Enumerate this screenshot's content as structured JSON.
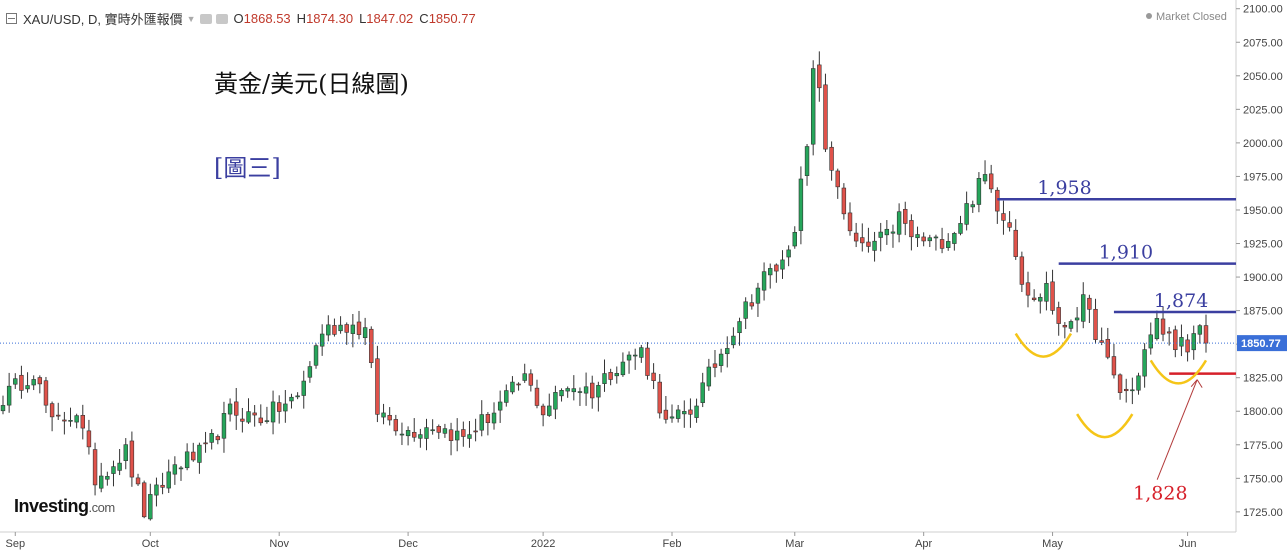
{
  "header": {
    "symbol": "XAU/USD, D, 實時外匯報價",
    "open_label": "O",
    "open": "1868.53",
    "high_label": "H",
    "high": "1874.30",
    "low_label": "L",
    "low": "1847.02",
    "close_label": "C",
    "close": "1850.77"
  },
  "market_status": "Market Closed",
  "annotations": {
    "title": "黃金/美元(日線圖)",
    "figure_label": "[圖三]"
  },
  "logo": {
    "brand": "Investing",
    "domain": ".com"
  },
  "colors": {
    "up": "#26a65b",
    "down": "#e0524a",
    "resistance": "#3b3fa0",
    "support": "#d6202a",
    "pattern": "#f5c518",
    "price_tag": "#3a6fd8"
  },
  "chart_data": {
    "type": "candlestick",
    "ylim": [
      1710,
      2105
    ],
    "yticks": [
      1725,
      1750,
      1775,
      1800,
      1825,
      1850,
      1875,
      1900,
      1925,
      1950,
      1975,
      2000,
      2025,
      2050,
      2075,
      2100
    ],
    "ytick_labels": [
      "1725.00",
      "1750.00",
      "1775.00",
      "1800.00",
      "1825.00",
      "1850.00",
      "1875.00",
      "1900.00",
      "1925.00",
      "1950.00",
      "1975.00",
      "2000.00",
      "2025.00",
      "2050.00",
      "2075.00",
      "2100.00"
    ],
    "xtick_labels": [
      "Sep",
      "Oct",
      "Nov",
      "Dec",
      "2022",
      "Feb",
      "Mar",
      "Apr",
      "May",
      "Jun"
    ],
    "xtick_index": [
      2,
      24,
      45,
      66,
      88,
      109,
      129,
      150,
      171,
      193
    ],
    "current_price": 1850.77,
    "current_price_label": "1850.77",
    "levels": [
      {
        "value": 1958,
        "label": "1,958",
        "from_index": 162,
        "kind": "resistance"
      },
      {
        "value": 1910,
        "label": "1,910",
        "from_index": 172,
        "kind": "resistance"
      },
      {
        "value": 1874,
        "label": "1,874",
        "from_index": 181,
        "kind": "resistance"
      },
      {
        "value": 1828,
        "label": "1,828",
        "from_index": 190,
        "kind": "support"
      }
    ],
    "patterns": [
      {
        "type": "bottom-arc",
        "from_index": 165,
        "to_index": 174,
        "low": 1840
      },
      {
        "type": "bottom-arc",
        "from_index": 175,
        "to_index": 184,
        "low": 1780
      },
      {
        "type": "bottom-arc",
        "from_index": 187,
        "to_index": 196,
        "low": 1820
      }
    ],
    "anchors": [
      {
        "i": 0,
        "p": 1810
      },
      {
        "i": 5,
        "p": 1830
      },
      {
        "i": 8,
        "p": 1790
      },
      {
        "i": 12,
        "p": 1800
      },
      {
        "i": 15,
        "p": 1750
      },
      {
        "i": 20,
        "p": 1770
      },
      {
        "i": 23,
        "p": 1725
      },
      {
        "i": 28,
        "p": 1760
      },
      {
        "i": 33,
        "p": 1770
      },
      {
        "i": 37,
        "p": 1800
      },
      {
        "i": 42,
        "p": 1795
      },
      {
        "i": 48,
        "p": 1810
      },
      {
        "i": 52,
        "p": 1860
      },
      {
        "i": 56,
        "p": 1865
      },
      {
        "i": 59,
        "p": 1860
      },
      {
        "i": 61,
        "p": 1800
      },
      {
        "i": 66,
        "p": 1785
      },
      {
        "i": 70,
        "p": 1790
      },
      {
        "i": 75,
        "p": 1780
      },
      {
        "i": 80,
        "p": 1800
      },
      {
        "i": 85,
        "p": 1825
      },
      {
        "i": 88,
        "p": 1800
      },
      {
        "i": 92,
        "p": 1820
      },
      {
        "i": 96,
        "p": 1815
      },
      {
        "i": 100,
        "p": 1835
      },
      {
        "i": 104,
        "p": 1845
      },
      {
        "i": 106,
        "p": 1820
      },
      {
        "i": 108,
        "p": 1790
      },
      {
        "i": 112,
        "p": 1800
      },
      {
        "i": 116,
        "p": 1835
      },
      {
        "i": 120,
        "p": 1870
      },
      {
        "i": 124,
        "p": 1900
      },
      {
        "i": 127,
        "p": 1910
      },
      {
        "i": 129,
        "p": 1940
      },
      {
        "i": 131,
        "p": 1995
      },
      {
        "i": 132,
        "p": 2050
      },
      {
        "i": 133,
        "p": 2045
      },
      {
        "i": 134,
        "p": 1990
      },
      {
        "i": 136,
        "p": 1970
      },
      {
        "i": 138,
        "p": 1930
      },
      {
        "i": 140,
        "p": 1920
      },
      {
        "i": 144,
        "p": 1930
      },
      {
        "i": 146,
        "p": 1945
      },
      {
        "i": 148,
        "p": 1930
      },
      {
        "i": 152,
        "p": 1925
      },
      {
        "i": 155,
        "p": 1935
      },
      {
        "i": 158,
        "p": 1960
      },
      {
        "i": 160,
        "p": 1975
      },
      {
        "i": 162,
        "p": 1955
      },
      {
        "i": 164,
        "p": 1940
      },
      {
        "i": 166,
        "p": 1900
      },
      {
        "i": 168,
        "p": 1880
      },
      {
        "i": 170,
        "p": 1895
      },
      {
        "i": 172,
        "p": 1860
      },
      {
        "i": 174,
        "p": 1870
      },
      {
        "i": 176,
        "p": 1880
      },
      {
        "i": 178,
        "p": 1860
      },
      {
        "i": 180,
        "p": 1835
      },
      {
        "i": 182,
        "p": 1815
      },
      {
        "i": 184,
        "p": 1815
      },
      {
        "i": 186,
        "p": 1845
      },
      {
        "i": 188,
        "p": 1865
      },
      {
        "i": 190,
        "p": 1855
      },
      {
        "i": 192,
        "p": 1850
      },
      {
        "i": 193,
        "p": 1840
      },
      {
        "i": 195,
        "p": 1865
      },
      {
        "i": 196,
        "p": 1850.77
      }
    ],
    "num_candles": 197
  }
}
